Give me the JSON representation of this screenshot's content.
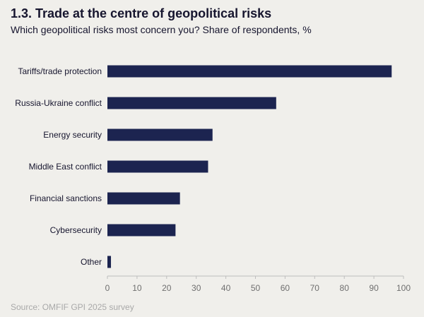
{
  "title": "1.3. Trade at the centre of geopolitical risks",
  "subtitle": "Which geopolitical risks most concern you? Share of respondents, %",
  "source": "Source: OMFIF GPI 2025 survey",
  "colors": {
    "bar": "#1c2450",
    "axis": "#bdbdbd",
    "background": "#f0efeb"
  },
  "chart_data": {
    "type": "bar",
    "orientation": "horizontal",
    "categories": [
      "Tariffs/trade protection",
      "Russia-Ukraine conflict",
      "Energy security",
      "Middle East conflict",
      "Financial sanctions",
      "Cybersecurity",
      "Other"
    ],
    "values": [
      96,
      57,
      35.5,
      34,
      24.5,
      23,
      1.2
    ],
    "xlim": [
      0,
      100
    ],
    "xticks": [
      0,
      10,
      20,
      30,
      40,
      50,
      60,
      70,
      80,
      90,
      100
    ],
    "grid": false
  }
}
